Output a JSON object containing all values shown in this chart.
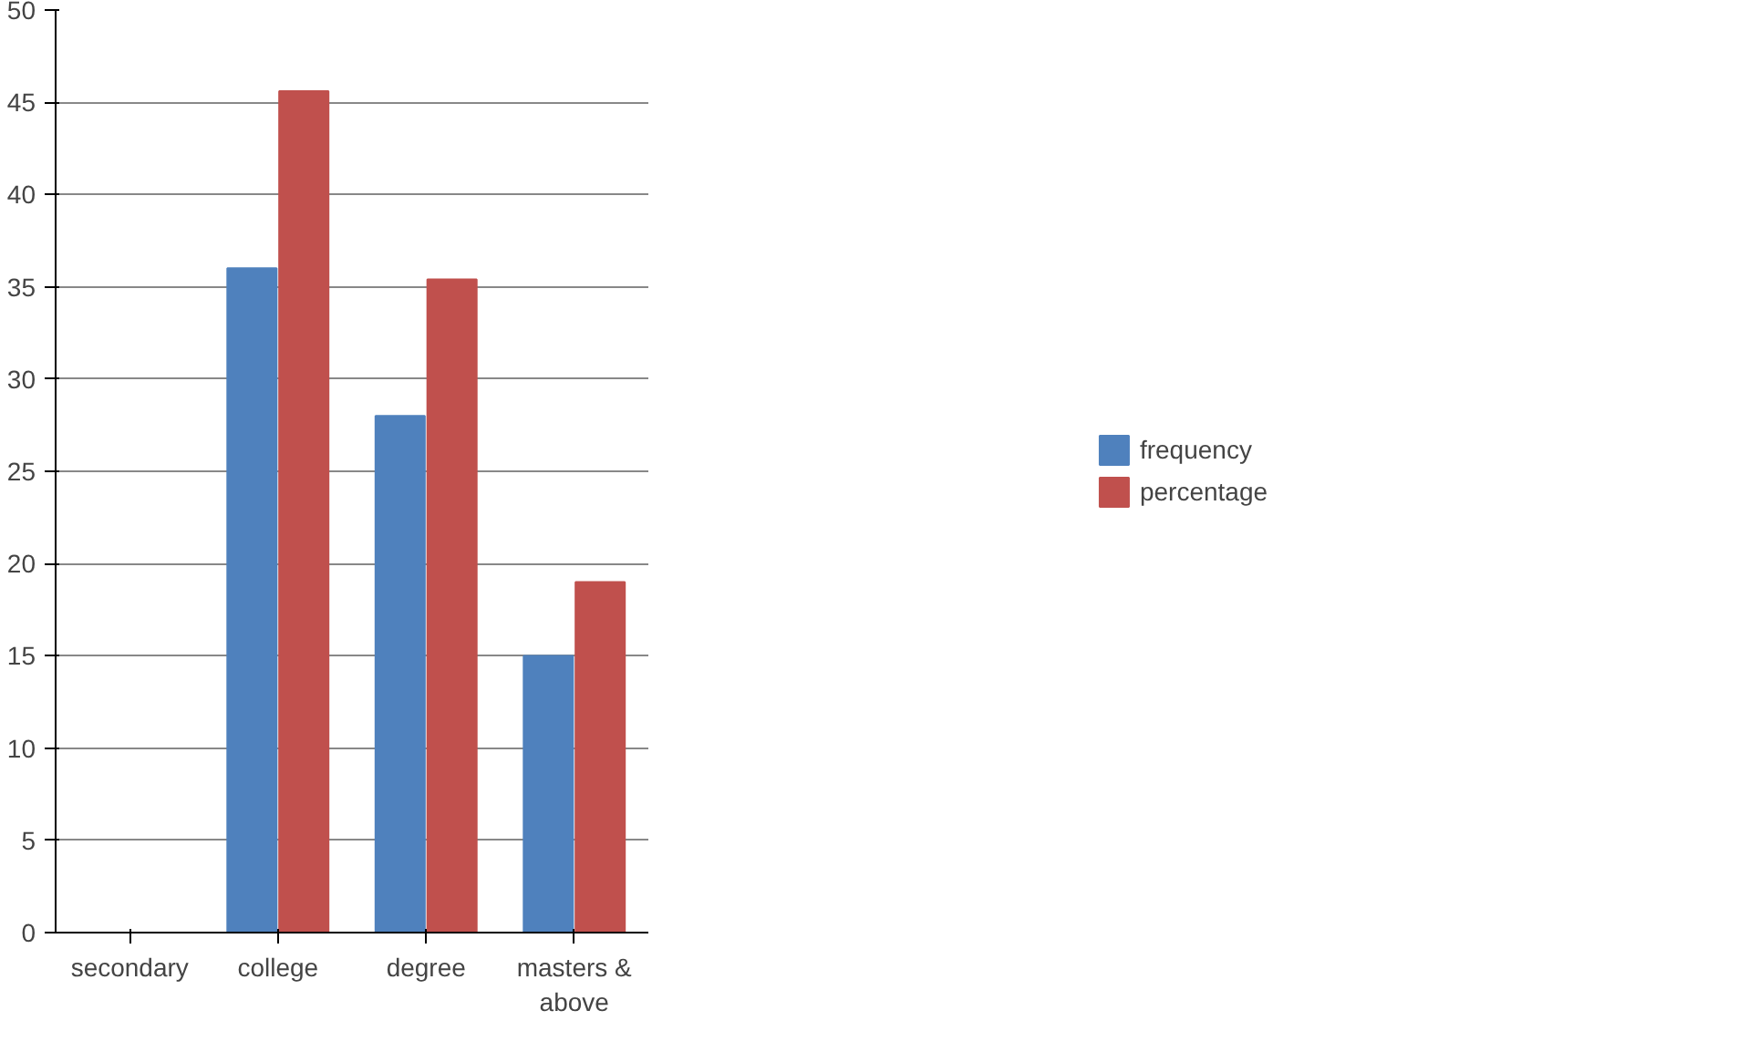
{
  "chart_data": {
    "type": "bar",
    "categories": [
      "secondary",
      "college",
      "degree",
      "masters &\nabove"
    ],
    "series": [
      {
        "name": "frequency",
        "color": "#4f81bd",
        "values": [
          0,
          36,
          28,
          15
        ]
      },
      {
        "name": "percentage",
        "color": "#c0504d",
        "values": [
          0,
          45.6,
          35.4,
          19
        ]
      }
    ],
    "ylim": [
      0,
      50
    ],
    "yticks": [
      0,
      5,
      10,
      15,
      20,
      25,
      30,
      35,
      40,
      45,
      50
    ],
    "grid": "y",
    "legend": "right"
  }
}
